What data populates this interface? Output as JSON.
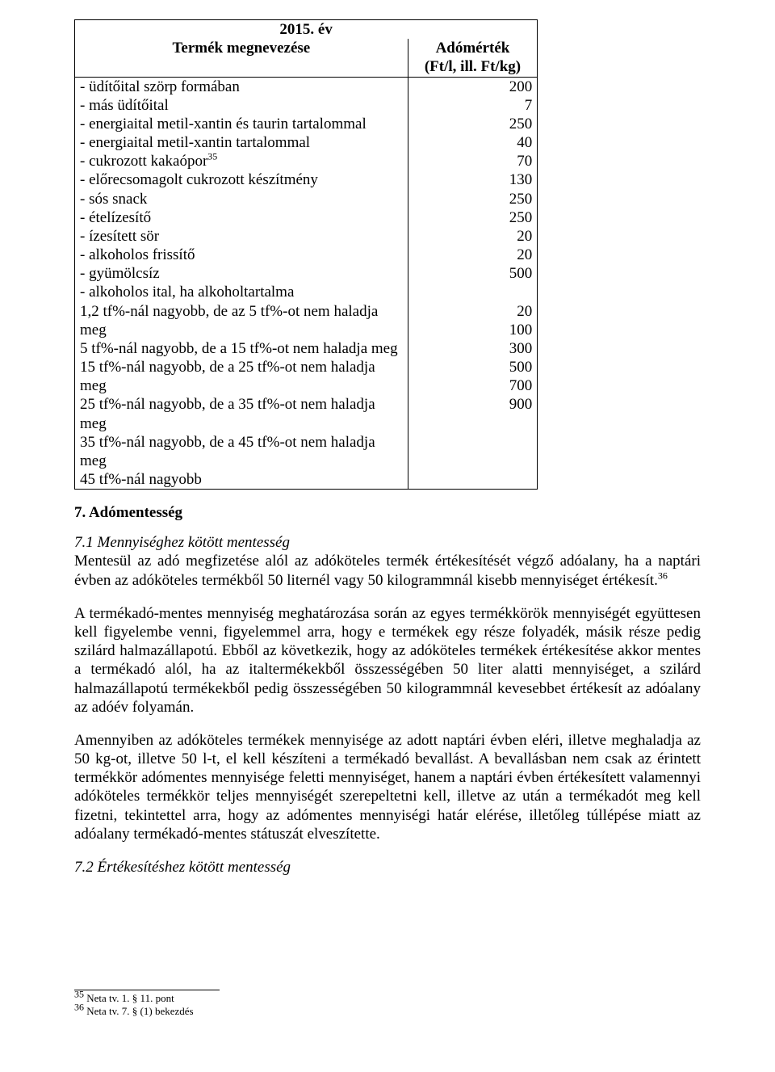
{
  "table": {
    "year": "2015. év",
    "col_product": "Termék megnevezése",
    "col_rate": "Adómérték\n(Ft/l, ill. Ft/kg)",
    "rows": [
      {
        "label": "- üdítőital szörp formában",
        "value": "200"
      },
      {
        "label": "- más üdítőital",
        "value": "7"
      },
      {
        "label": "- energiaital metil-xantin és taurin tartalommal",
        "value": "250"
      },
      {
        "label": "- energiaital metil-xantin tartalommal",
        "value": "40"
      },
      {
        "label": "- cukrozott kakaópor",
        "sup": "35",
        "value": "70"
      },
      {
        "label": "- előrecsomagolt cukrozott készítmény",
        "value": "130"
      },
      {
        "label": "- sós snack",
        "value": "250"
      },
      {
        "label": "- ételízesítő",
        "value": "250"
      },
      {
        "label": "- ízesített sör",
        "value": "20"
      },
      {
        "label": "- alkoholos frissítő",
        "value": "20"
      },
      {
        "label": "- gyümölcsíz",
        "value": "500"
      },
      {
        "label": "- alkoholos ital, ha alkoholtartalma",
        "value": ""
      },
      {
        "label": "1,2 tf%-nál nagyobb, de az 5 tf%-ot nem haladja meg",
        "value": "20"
      },
      {
        "label": "5 tf%-nál nagyobb, de a 15 tf%-ot nem haladja meg",
        "value": "100"
      },
      {
        "label": "15 tf%-nál nagyobb, de a 25 tf%-ot nem haladja meg",
        "value": "300"
      },
      {
        "label": "25 tf%-nál nagyobb, de a 35 tf%-ot nem haladja meg",
        "value": "500"
      },
      {
        "label": "35 tf%-nál nagyobb, de a 45 tf%-ot nem haladja meg",
        "value": "700"
      },
      {
        "label": "45 tf%-nál nagyobb",
        "value": "900"
      }
    ]
  },
  "section7_heading": "7. Adómentesség",
  "p1_lead_italic": "7.1 Mennyiséghez kötött mentesség",
  "p1_body": "Mentesül az adó megfizetése alól az adóköteles termék értékesítését végző adóalany, ha a naptári évben az adóköteles termékből 50 liternél vagy 50 kilogrammnál kisebb mennyiséget értékesít.",
  "p1_sup": "36",
  "p2": "A termékadó-mentes mennyiség meghatározása során az egyes termékkörök mennyiségét együttesen kell figyelembe venni, figyelemmel arra, hogy e termékek egy része folyadék, másik része pedig szilárd halmazállapotú. Ebből az következik, hogy az adóköteles termékek értékesítése akkor mentes a termékadó alól, ha az italtermékekből összességében 50 liter alatti mennyiséget, a szilárd halmazállapotú termékekből pedig összességében 50 kilogrammnál kevesebbet értékesít az adóalany az adóév folyamán.",
  "p3": "Amennyiben az adóköteles termékek mennyisége az adott naptári évben eléri, illetve meghaladja az 50 kg-ot, illetve 50 l-t, el kell készíteni a termékadó bevallást. A bevallásban nem csak az érintett termékkör adómentes mennyisége feletti mennyiséget, hanem a naptári évben értékesített valamennyi adóköteles termékkör teljes mennyiségét szerepeltetni kell, illetve az után a termékadót meg kell fizetni, tekintettel arra, hogy az adómentes mennyiségi határ elérése, illetőleg túllépése miatt az adóalany termékadó-mentes státuszát elveszítette.",
  "p4_italic": "7.2 Értékesítéshez kötött mentesség",
  "footnotes": [
    {
      "num": "35",
      "text": " Neta tv. 1. § 11. pont"
    },
    {
      "num": "36",
      "text": " Neta tv. 7. § (1) bekezdés"
    }
  ]
}
